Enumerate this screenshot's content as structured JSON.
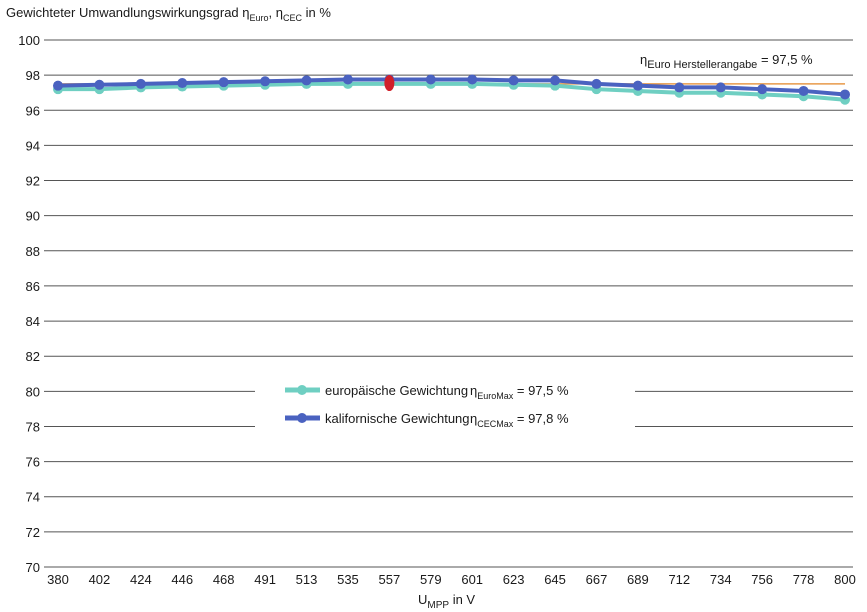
{
  "chart_data": {
    "type": "line",
    "title": "Gewichteter Umwandlungswirkungsgrad",
    "title_eta_euro": "η",
    "title_eta_euro_sub": "Euro",
    "title_sep": ",",
    "title_eta_cec": "η",
    "title_eta_cec_sub": "CEC",
    "title_unit": "in %",
    "xlabel_main": "U",
    "xlabel_sub": "MPP",
    "xlabel_unit": "in V",
    "ylim": [
      70,
      100
    ],
    "yticks": [
      "70",
      "72",
      "74",
      "76",
      "78",
      "80",
      "82",
      "84",
      "86",
      "88",
      "90",
      "92",
      "94",
      "96",
      "98",
      "100"
    ],
    "categories": [
      "380",
      "402",
      "424",
      "446",
      "468",
      "491",
      "513",
      "535",
      "557",
      "579",
      "601",
      "623",
      "645",
      "667",
      "689",
      "712",
      "734",
      "756",
      "778",
      "800"
    ],
    "grid": true,
    "series": [
      {
        "name": "europäische Gewichtung",
        "eta_symbol": "η",
        "eta_sub": "EuroMax",
        "eta_value": "= 97,5 %",
        "color": "#6fcfc2",
        "values": [
          97.2,
          97.2,
          97.3,
          97.35,
          97.4,
          97.45,
          97.5,
          97.5,
          97.5,
          97.5,
          97.5,
          97.45,
          97.4,
          97.2,
          97.1,
          97.0,
          97.0,
          96.9,
          96.8,
          96.6
        ]
      },
      {
        "name": "kalifornische Gewichtung",
        "eta_symbol": "η",
        "eta_sub": "CECMax",
        "eta_value": "= 97,8 %",
        "color": "#4a62c0",
        "values": [
          97.4,
          97.45,
          97.5,
          97.55,
          97.6,
          97.65,
          97.7,
          97.75,
          97.75,
          97.75,
          97.75,
          97.7,
          97.7,
          97.5,
          97.4,
          97.3,
          97.3,
          97.2,
          97.1,
          96.9
        ]
      }
    ],
    "reference_line": {
      "eta_symbol": "η",
      "eta_sub": "Euro Herstellerangabe",
      "eta_value": "= 97,5 %",
      "value": 97.5,
      "color": "#e89a4a"
    },
    "highlight": {
      "category": "557",
      "value": 97.55,
      "color": "#d0202a"
    },
    "legend_position": "center"
  }
}
